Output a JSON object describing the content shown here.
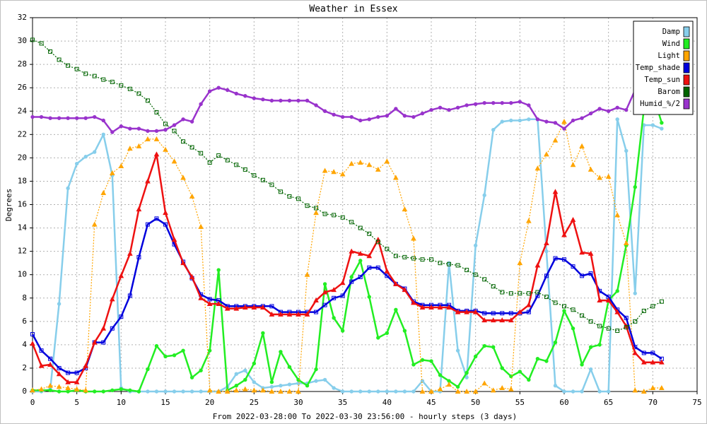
{
  "chart_data": {
    "type": "line",
    "title": "Weather in Essex",
    "x_label": "From 2022-03-28:00 To 2022-03-30 23:56:00 - hourly steps (3 days)",
    "y_label": "Degrees",
    "x": [
      0,
      1,
      2,
      3,
      4,
      5,
      6,
      7,
      8,
      9,
      10,
      11,
      12,
      13,
      14,
      15,
      16,
      17,
      18,
      19,
      20,
      21,
      22,
      23,
      24,
      25,
      26,
      27,
      28,
      29,
      30,
      31,
      32,
      33,
      34,
      35,
      36,
      37,
      38,
      39,
      40,
      41,
      42,
      43,
      44,
      45,
      46,
      47,
      48,
      49,
      50,
      51,
      52,
      53,
      54,
      55,
      56,
      57,
      58,
      59,
      60,
      61,
      62,
      63,
      64,
      65,
      66,
      67,
      68,
      69,
      70,
      71
    ],
    "xlim": [
      0,
      75
    ],
    "xticks": [
      0,
      5,
      10,
      15,
      20,
      25,
      30,
      35,
      40,
      45,
      50,
      55,
      60,
      65,
      70,
      75
    ],
    "ylim": [
      0,
      32
    ],
    "yticks": [
      0,
      2,
      4,
      6,
      8,
      10,
      12,
      14,
      16,
      18,
      20,
      22,
      24,
      26,
      28,
      30,
      32
    ],
    "grid": true,
    "legend": "top-right",
    "series": [
      {
        "name": "Damp",
        "color": "#87ceeb",
        "marker": "circle",
        "line_style": "solid",
        "values": [
          0,
          0,
          0.2,
          7.5,
          17.4,
          19.5,
          20.1,
          20.5,
          22,
          18.5,
          0.3,
          0,
          0,
          0,
          0,
          0,
          0,
          0,
          0,
          0,
          0,
          0,
          0.4,
          1.5,
          1.8,
          0.8,
          0.3,
          0.4,
          0.5,
          0.6,
          0.7,
          0.7,
          0.9,
          1.0,
          0.3,
          0,
          0,
          0,
          0,
          0,
          0,
          0,
          0,
          0,
          0.9,
          0,
          0,
          11,
          3.5,
          1.2,
          12.5,
          16.8,
          22.4,
          23.1,
          23.2,
          23.2,
          23.3,
          23.3,
          12,
          0.5,
          0,
          0,
          0,
          1.9,
          0,
          0,
          23.3,
          20.6,
          8.4,
          22.8,
          22.8,
          22.5
        ]
      },
      {
        "name": "Wind",
        "color": "#22ee22",
        "marker": "circle",
        "line_style": "solid",
        "values": [
          0.1,
          0.1,
          0.1,
          0,
          0,
          0.1,
          0,
          0,
          0,
          0.1,
          0.2,
          0.1,
          0,
          1.9,
          3.9,
          3.0,
          3.1,
          3.5,
          1.2,
          1.8,
          3.5,
          10.4,
          0.1,
          0.5,
          1.0,
          2.4,
          5.0,
          0.8,
          3.4,
          2.1,
          1.0,
          0.5,
          1.9,
          9.2,
          6.3,
          5.2,
          9.8,
          11.2,
          8.1,
          4.6,
          5.0,
          7.0,
          5.2,
          2.3,
          2.7,
          2.6,
          1.4,
          0.9,
          0.4,
          1.6,
          3.0,
          3.9,
          3.8,
          2.0,
          1.3,
          1.7,
          1.0,
          2.8,
          2.6,
          4.2,
          6.9,
          5.4,
          2.3,
          3.8,
          4.0,
          7.8,
          8.6,
          12.5,
          17.5,
          24.2,
          25.5,
          23.0
        ]
      },
      {
        "name": "Light",
        "color": "#ffa500",
        "marker": "triangle",
        "line_style": "dotted",
        "values": [
          0.1,
          0.2,
          0.5,
          0.4,
          0.3,
          0.2,
          0.1,
          14.3,
          17,
          18.7,
          19.3,
          20.8,
          21,
          21.6,
          21.6,
          20.7,
          19.7,
          18.3,
          16.7,
          14.1,
          0.1,
          0,
          0,
          0.1,
          0.2,
          0.1,
          0.1,
          0,
          0,
          0,
          0,
          10,
          15.3,
          18.9,
          18.8,
          18.6,
          19.5,
          19.6,
          19.4,
          19.0,
          19.7,
          18.3,
          15.6,
          13.1,
          0,
          0,
          0.2,
          0.6,
          0,
          0,
          0,
          0.7,
          0.1,
          0.3,
          0.2,
          11,
          14.6,
          19.1,
          20.3,
          21.5,
          23.1,
          19.4,
          21,
          19,
          18.3,
          18.4,
          15.1,
          12.7,
          0.1,
          0,
          0.3,
          0.3
        ]
      },
      {
        "name": "Temp_shade",
        "color": "#0000dd",
        "marker": "square",
        "line_style": "solid",
        "values": [
          4.9,
          3.5,
          2.8,
          2.0,
          1.6,
          1.6,
          2.0,
          4.2,
          4.2,
          5.4,
          6.4,
          8.2,
          11.5,
          14.3,
          14.8,
          14.3,
          12.6,
          11.1,
          9.7,
          8.3,
          7.9,
          7.8,
          7.3,
          7.3,
          7.3,
          7.3,
          7.3,
          7.3,
          6.8,
          6.8,
          6.8,
          6.8,
          6.8,
          7.4,
          8.0,
          8.2,
          9.4,
          9.8,
          10.6,
          10.6,
          9.9,
          9.2,
          8.8,
          7.7,
          7.4,
          7.4,
          7.4,
          7.4,
          6.9,
          6.9,
          6.9,
          6.7,
          6.7,
          6.7,
          6.7,
          6.7,
          6.8,
          8.2,
          9.9,
          11.4,
          11.3,
          10.7,
          9.9,
          10.1,
          8.6,
          8.1,
          7.0,
          6.3,
          3.8,
          3.3,
          3.3,
          2.8
        ]
      },
      {
        "name": "Temp_sun",
        "color": "#ee1111",
        "marker": "triangle",
        "line_style": "solid",
        "values": [
          4.1,
          2.2,
          2.3,
          1.5,
          0.8,
          0.8,
          2.2,
          4.2,
          5.4,
          7.9,
          9.9,
          11.8,
          15.6,
          18,
          20.3,
          15.3,
          13,
          11,
          9.8,
          8.0,
          7.5,
          7.5,
          7.1,
          7.1,
          7.2,
          7.2,
          7.2,
          6.6,
          6.6,
          6.6,
          6.6,
          6.6,
          7.8,
          8.5,
          8.7,
          9.3,
          12,
          11.8,
          11.6,
          13.0,
          10.3,
          9.2,
          8.7,
          7.6,
          7.2,
          7.2,
          7.2,
          7.2,
          6.8,
          6.8,
          6.8,
          6.1,
          6.1,
          6.1,
          6.1,
          6.8,
          7.4,
          10.8,
          12.7,
          17.1,
          13.4,
          14.7,
          11.9,
          11.8,
          7.8,
          7.8,
          6.8,
          5.6,
          3.3,
          2.5,
          2.5,
          2.5
        ]
      },
      {
        "name": "Barom",
        "color": "#006400",
        "marker": "square",
        "line_style": "dotted",
        "values": [
          30.1,
          29.8,
          29.1,
          28.4,
          27.9,
          27.6,
          27.2,
          27.0,
          26.7,
          26.5,
          26.2,
          25.9,
          25.5,
          24.9,
          23.9,
          22.9,
          22.3,
          21.4,
          20.9,
          20.4,
          19.6,
          20.2,
          19.8,
          19.4,
          19.0,
          18.5,
          18.1,
          17.7,
          17.1,
          16.7,
          16.5,
          15.9,
          15.7,
          15.2,
          15.1,
          14.9,
          14.5,
          14.0,
          13.5,
          12.8,
          12.2,
          11.6,
          11.5,
          11.4,
          11.3,
          11.3,
          11.0,
          10.9,
          10.8,
          10.4,
          10.0,
          9.6,
          9.0,
          8.5,
          8.4,
          8.4,
          8.4,
          8.5,
          8.1,
          7.6,
          7.3,
          7.0,
          6.5,
          6.0,
          5.6,
          5.4,
          5.2,
          5.5,
          6.0,
          6.9,
          7.3,
          7.7
        ]
      },
      {
        "name": "Humid_%/2",
        "color": "#9933cc",
        "marker": "circle",
        "line_style": "solid",
        "values": [
          23.5,
          23.5,
          23.4,
          23.4,
          23.4,
          23.4,
          23.4,
          23.5,
          23.2,
          22.2,
          22.7,
          22.5,
          22.5,
          22.3,
          22.3,
          22.4,
          22.8,
          23.3,
          23.1,
          24.6,
          25.7,
          26.0,
          25.8,
          25.5,
          25.3,
          25.1,
          25.0,
          24.9,
          24.9,
          24.9,
          24.9,
          24.9,
          24.5,
          24.0,
          23.7,
          23.5,
          23.5,
          23.2,
          23.3,
          23.5,
          23.6,
          24.2,
          23.6,
          23.5,
          23.8,
          24.1,
          24.3,
          24.1,
          24.3,
          24.5,
          24.6,
          24.7,
          24.7,
          24.7,
          24.7,
          24.8,
          24.5,
          23.3,
          23.1,
          23.0,
          22.5,
          23.2,
          23.4,
          23.8,
          24.2,
          24.0,
          24.3,
          24.1,
          25.8,
          26.2,
          26.4,
          26.5
        ]
      }
    ]
  }
}
